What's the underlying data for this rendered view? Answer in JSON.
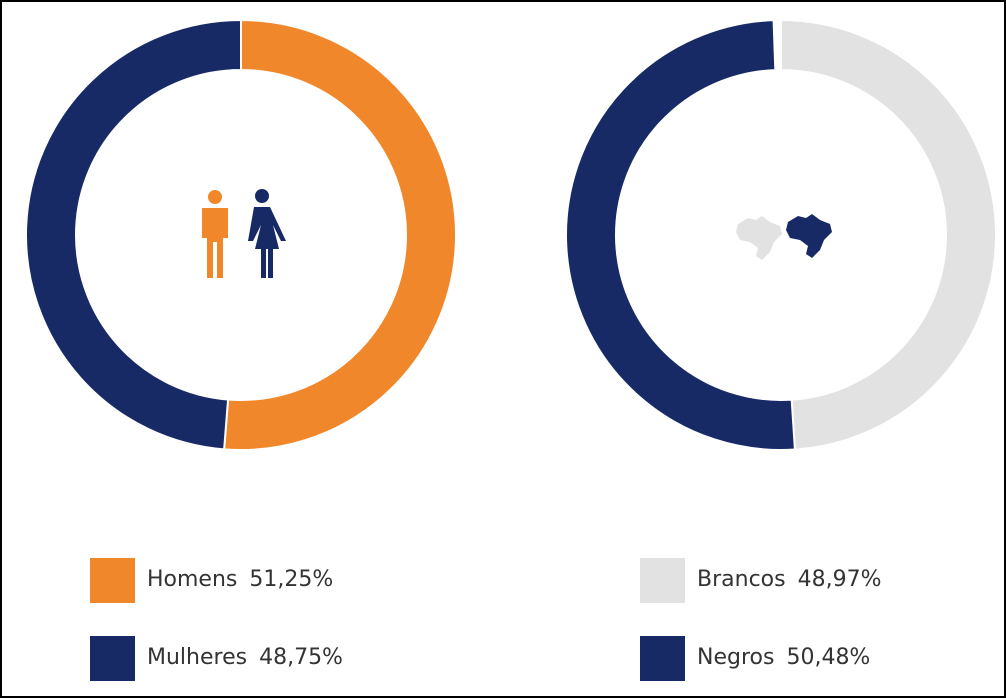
{
  "chart_data": [
    {
      "type": "pie",
      "categories": [
        "Homens",
        "Mulheres"
      ],
      "values": [
        51.25,
        48.75
      ],
      "value_labels": [
        "51,25%",
        "48,75%"
      ],
      "colors": [
        "#f0872a",
        "#172a66"
      ]
    },
    {
      "type": "pie",
      "categories": [
        "Brancos",
        "Negros"
      ],
      "values": [
        48.97,
        50.48
      ],
      "value_labels": [
        "48,97%",
        "50,48%"
      ],
      "colors": [
        "#e2e2e2",
        "#172a66"
      ]
    }
  ]
}
